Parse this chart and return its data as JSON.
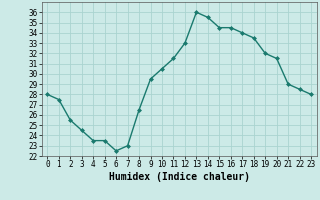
{
  "x": [
    0,
    1,
    2,
    3,
    4,
    5,
    6,
    7,
    8,
    9,
    10,
    11,
    12,
    13,
    14,
    15,
    16,
    17,
    18,
    19,
    20,
    21,
    22,
    23
  ],
  "y": [
    28.0,
    27.5,
    25.5,
    24.5,
    23.5,
    23.5,
    22.5,
    23.0,
    26.5,
    29.5,
    30.5,
    31.5,
    33.0,
    36.0,
    35.5,
    34.5,
    34.5,
    34.0,
    33.5,
    32.0,
    31.5,
    29.0,
    28.5,
    28.0
  ],
  "line_color": "#1a7a6e",
  "marker": "D",
  "marker_size": 2.0,
  "bg_color": "#cceae7",
  "grid_color": "#aad4d0",
  "xlabel": "Humidex (Indice chaleur)",
  "ylim": [
    22,
    37
  ],
  "xlim": [
    -0.5,
    23.5
  ],
  "yticks": [
    22,
    23,
    24,
    25,
    26,
    27,
    28,
    29,
    30,
    31,
    32,
    33,
    34,
    35,
    36
  ],
  "xticks": [
    0,
    1,
    2,
    3,
    4,
    5,
    6,
    7,
    8,
    9,
    10,
    11,
    12,
    13,
    14,
    15,
    16,
    17,
    18,
    19,
    20,
    21,
    22,
    23
  ],
  "tick_fontsize": 5.5,
  "xlabel_fontsize": 7.0,
  "line_width": 1.0
}
